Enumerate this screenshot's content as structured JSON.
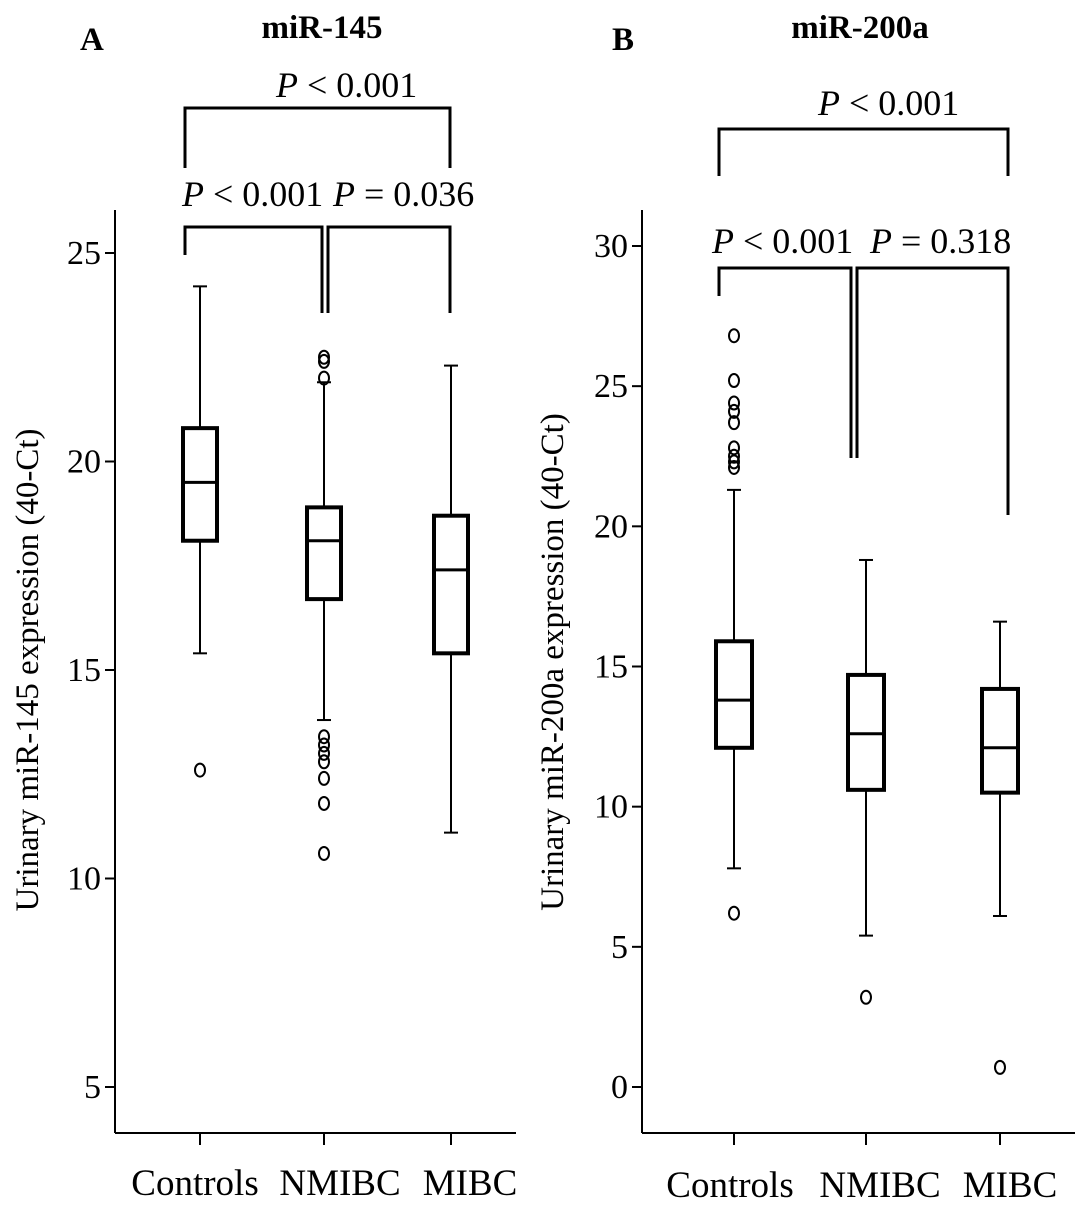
{
  "chart_data": [
    {
      "type": "box",
      "panel_label": "A",
      "title": "miR-145",
      "xlabel": "",
      "ylabel": "Urinary miR-145 expression (40-Ct)",
      "yticks": [
        5,
        10,
        15,
        20,
        25
      ],
      "categories": [
        "Controls",
        "NMIBC",
        "MIBC"
      ],
      "boxes": [
        {
          "category": "Controls",
          "whisker_low": 15.4,
          "q1": 18.1,
          "median": 19.5,
          "q3": 20.8,
          "whisker_high": 24.2,
          "outliers": [
            12.6
          ]
        },
        {
          "category": "NMIBC",
          "whisker_low": 13.8,
          "q1": 16.7,
          "median": 18.1,
          "q3": 18.9,
          "whisker_high": 21.9,
          "outliers": [
            22.5,
            22.4,
            22.0,
            13.4,
            13.2,
            13.0,
            12.8,
            12.4,
            11.8,
            10.6
          ]
        },
        {
          "category": "MIBC",
          "whisker_low": 11.1,
          "q1": 15.4,
          "median": 17.4,
          "q3": 18.7,
          "whisker_high": 22.3,
          "outliers": []
        }
      ],
      "comparisons": [
        {
          "between": [
            "Controls",
            "MIBC"
          ],
          "p": "< 0.001"
        },
        {
          "between": [
            "Controls",
            "NMIBC"
          ],
          "p": "< 0.001"
        },
        {
          "between": [
            "NMIBC",
            "MIBC"
          ],
          "p": "= 0.036"
        }
      ]
    },
    {
      "type": "box",
      "panel_label": "B",
      "title": "miR-200a",
      "xlabel": "",
      "ylabel": "Urinary miR-200a expression (40-Ct)",
      "yticks": [
        0,
        5,
        10,
        15,
        20,
        25,
        30
      ],
      "categories": [
        "Controls",
        "NMIBC",
        "MIBC"
      ],
      "boxes": [
        {
          "category": "Controls",
          "whisker_low": 7.8,
          "q1": 12.1,
          "median": 13.8,
          "q3": 15.9,
          "whisker_high": 21.3,
          "outliers": [
            26.8,
            25.2,
            24.4,
            24.1,
            23.7,
            22.8,
            22.5,
            22.3,
            22.1,
            6.2
          ]
        },
        {
          "category": "NMIBC",
          "whisker_low": 5.4,
          "q1": 10.6,
          "median": 12.6,
          "q3": 14.7,
          "whisker_high": 18.8,
          "outliers": [
            3.2
          ]
        },
        {
          "category": "MIBC",
          "whisker_low": 6.1,
          "q1": 10.5,
          "median": 12.1,
          "q3": 14.2,
          "whisker_high": 16.6,
          "outliers": [
            0.7
          ]
        }
      ],
      "comparisons": [
        {
          "between": [
            "Controls",
            "MIBC"
          ],
          "p": "< 0.001"
        },
        {
          "between": [
            "Controls",
            "NMIBC"
          ],
          "p": "< 0.001"
        },
        {
          "between": [
            "NMIBC",
            "MIBC"
          ],
          "p": "= 0.318"
        }
      ]
    }
  ],
  "p_symbol": "P",
  "colors": {
    "ink": "#000000",
    "background": "#ffffff"
  }
}
